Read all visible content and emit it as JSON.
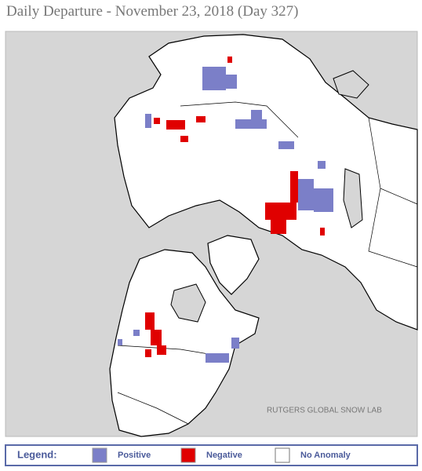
{
  "header": {
    "title": "Daily Departure - November 23, 2018 (Day 327)"
  },
  "map": {
    "credit": "RUTGERS GLOBAL SNOW LAB"
  },
  "legend": {
    "title": "Legend:",
    "items": [
      {
        "label": "Positive",
        "color": "#7b7fc8"
      },
      {
        "label": "Negative",
        "color": "#e00000"
      },
      {
        "label": "No Anomaly",
        "color": "#ffffff"
      }
    ]
  }
}
